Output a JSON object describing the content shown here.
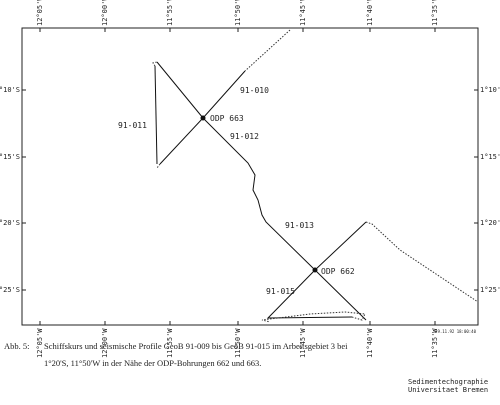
{
  "map": {
    "lon_labels": [
      "12°05'W",
      "12°00'W",
      "11°55'W",
      "11°50'W",
      "11°45'W",
      "11°40'W",
      "11°35'W"
    ],
    "lat_labels": [
      "1°10'S",
      "1°15'S",
      "1°20'S",
      "1°25'S"
    ],
    "stations": [
      "ODP 663",
      "ODP 662"
    ],
    "profiles": [
      "91-010",
      "91-011",
      "91-012",
      "91-013",
      "91-015"
    ],
    "timestamp": "29.11.92 18:00:40"
  },
  "caption": {
    "label": "Abb. 5:",
    "line1": "Schiffskurs und seismische Profile GeoB 91-009 bis GeoB 91-015 im Arbeitsgebiet 3 bei",
    "line2": "1°20'S, 11°50'W in der Nähe der ODP-Bohrungen 662 und 663."
  },
  "credit": {
    "line1": "Sedimentechographie",
    "line2": "Universitaet Bremen"
  }
}
